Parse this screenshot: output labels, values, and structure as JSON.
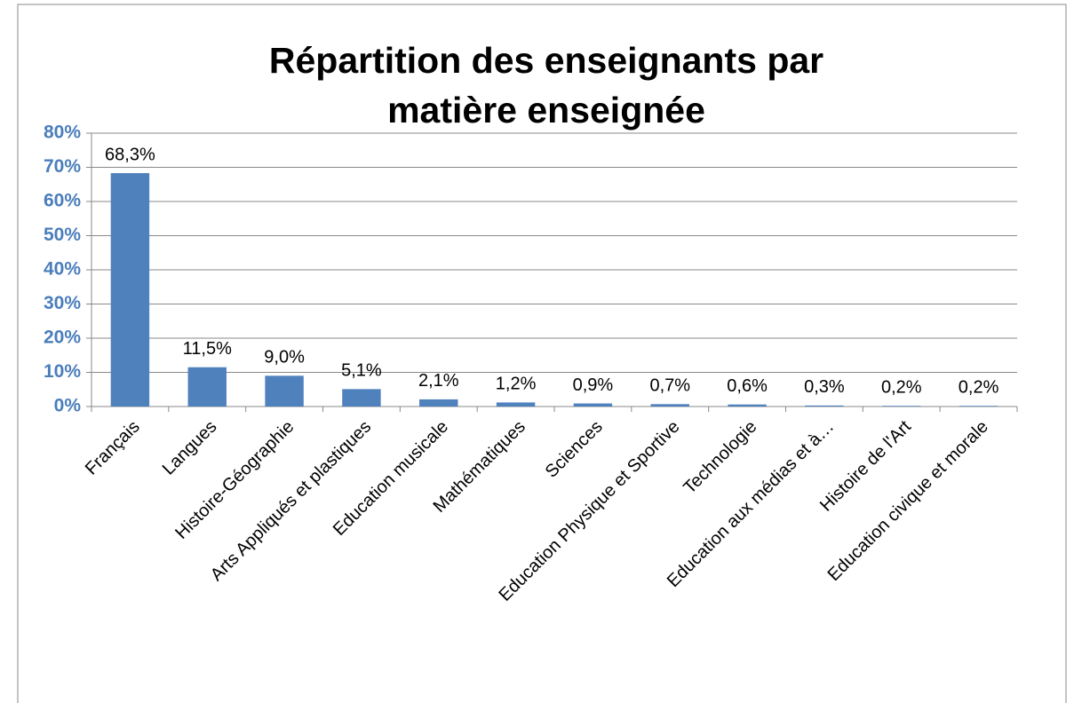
{
  "chart_data": {
    "type": "bar",
    "title": "Répartition des enseignants par matière enseignée",
    "categories": [
      "Français",
      "Langues",
      "Histoire-Géographie",
      "Arts Appliqués et plastiques",
      "Education musicale",
      "Mathématiques",
      "Sciences",
      "Education Physique et Sportive",
      "Technologie",
      "Education aux médias et à…",
      "Histoire de l'Art",
      "Education civique et morale"
    ],
    "values": [
      68.3,
      11.5,
      9.0,
      5.1,
      2.1,
      1.2,
      0.9,
      0.7,
      0.6,
      0.3,
      0.2,
      0.2
    ],
    "value_labels": [
      "68,3%",
      "11,5%",
      "9,0%",
      "5,1%",
      "2,1%",
      "1,2%",
      "0,9%",
      "0,7%",
      "0,6%",
      "0,3%",
      "0,2%",
      "0,2%"
    ],
    "color": "#4f81bd",
    "ylim": [
      0,
      80
    ],
    "yticks": [
      {
        "value": 0,
        "label": "0%"
      },
      {
        "value": 10,
        "label": "10%"
      },
      {
        "value": 20,
        "label": "20%"
      },
      {
        "value": 30,
        "label": "30%"
      },
      {
        "value": 40,
        "label": "40%"
      },
      {
        "value": 50,
        "label": "50%"
      },
      {
        "value": 60,
        "label": "60%"
      },
      {
        "value": 70,
        "label": "70%"
      },
      {
        "value": 80,
        "label": "80%"
      }
    ],
    "grid": true
  }
}
